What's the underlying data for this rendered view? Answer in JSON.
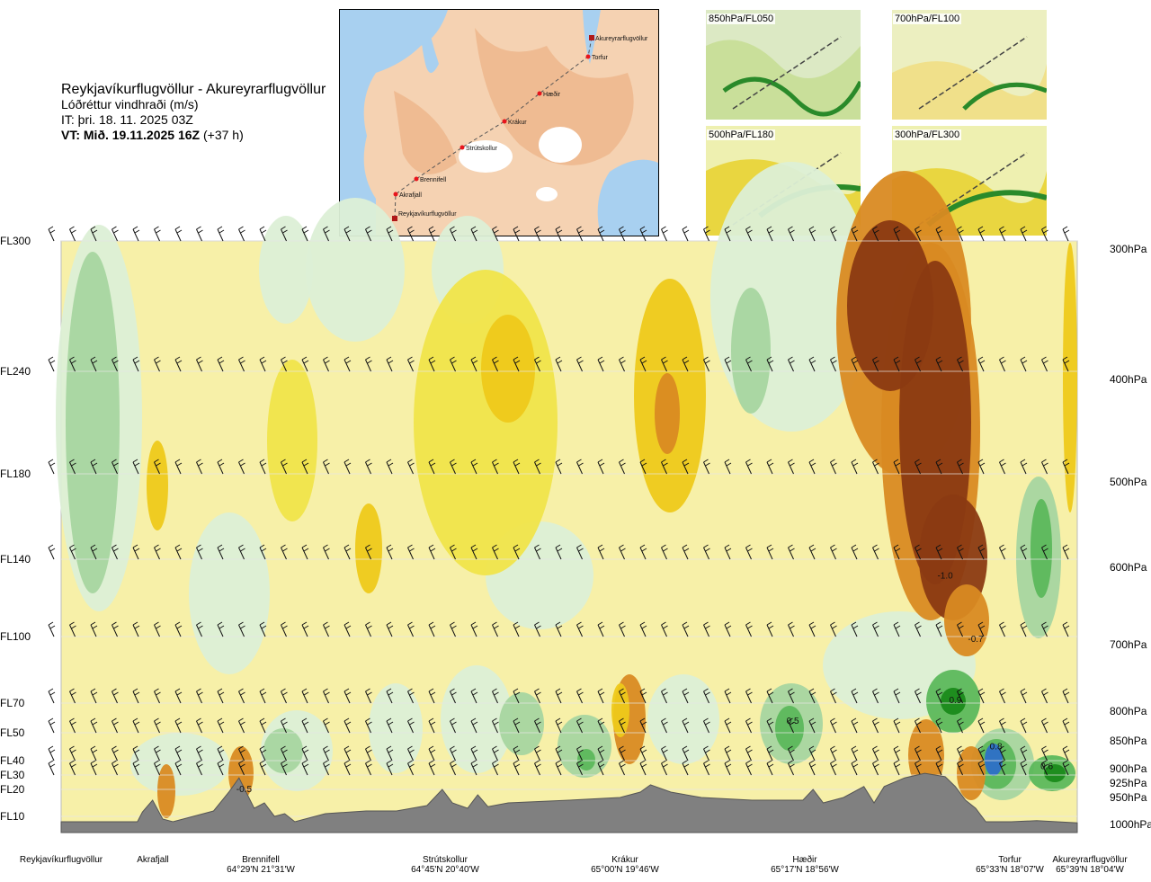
{
  "header": {
    "route": "Reykjavíkurflugvöllur - Akureyrarflugvöllur",
    "variable": "Lóðréttur vindhraði (m/s)",
    "issue_time": "IT: þri. 18. 11. 2025 03Z",
    "valid_prefix": "VT: Mið. 19.11.2025 16Z",
    "valid_suffix": " (+37 h)"
  },
  "map": {
    "points": [
      {
        "name": "Akureyrarflugvöllur"
      },
      {
        "name": "Torfur"
      },
      {
        "name": "Hæðir"
      },
      {
        "name": "Krákur"
      },
      {
        "name": "Strútskollur"
      },
      {
        "name": "Brennifell"
      },
      {
        "name": "Akrafjall"
      },
      {
        "name": "Reykjavíkurflugvöllur"
      }
    ],
    "colors": {
      "land": "#f3c9a4",
      "sea": "#9ec9ec",
      "ice": "#ffffff",
      "route": "#555555",
      "point": "#e8141c"
    }
  },
  "thumbnails": [
    {
      "label": "850hPa/FL050"
    },
    {
      "label": "700hPa/FL100"
    },
    {
      "label": "500hPa/FL180"
    },
    {
      "label": "300hPa/FL300"
    }
  ],
  "chart_data": {
    "type": "heatmap",
    "title": "Lóðréttur vindhraði (m/s)",
    "y_left_flight_levels": [
      "FL300",
      "FL240",
      "FL180",
      "FL140",
      "FL100",
      "FL70",
      "FL50",
      "FL40",
      "FL30",
      "FL20",
      "FL10"
    ],
    "y_right_pressure": [
      "300hPa",
      "400hPa",
      "500hPa",
      "600hPa",
      "700hPa",
      "800hPa",
      "850hPa",
      "900hPa",
      "925hPa",
      "950hPa",
      "1000hPa"
    ],
    "pressure_levels": [
      300,
      400,
      500,
      600,
      700,
      800,
      850,
      900,
      925,
      950,
      1000
    ],
    "x_locations": [
      {
        "name": "Reykjavíkurflugvöllur",
        "coord": ""
      },
      {
        "name": "Akrafjall",
        "coord": ""
      },
      {
        "name": "Brennifell",
        "coord": "64°29'N 21°31'W"
      },
      {
        "name": "Strútskollur",
        "coord": "64°45'N 20°40'W"
      },
      {
        "name": "Krákur",
        "coord": "65°00'N 19°46'W"
      },
      {
        "name": "Hæðir",
        "coord": "65°17'N 18°56'W"
      },
      {
        "name": "Torfur",
        "coord": "65°33'N 18°07'W"
      },
      {
        "name": "Akureyrarflugvöllur",
        "coord": "65°39'N 18°04'W"
      }
    ],
    "x_positions": [
      0.0,
      0.08,
      0.17,
      0.38,
      0.57,
      0.74,
      0.95,
      1.0
    ],
    "contour_labels": [
      {
        "text": "-1.0",
        "x": 0.87,
        "p": 625
      },
      {
        "text": "-0.7",
        "x": 0.9,
        "p": 708
      },
      {
        "text": "0.9",
        "x": 0.88,
        "p": 800
      },
      {
        "text": "0.5",
        "x": 0.72,
        "p": 835
      },
      {
        "text": "0.8",
        "x": 0.92,
        "p": 880
      },
      {
        "text": "0.6",
        "x": 0.97,
        "p": 915
      },
      {
        "text": "-0.5",
        "x": 0.18,
        "p": 955
      }
    ],
    "colors": {
      "strong_down": "#8b3a12",
      "mod_down": "#d98a22",
      "weak_down": "#eec91a",
      "vweak_down": "#f0e44a",
      "neutral_down": "#f7f0a8",
      "neutral_up": "#dcefd6",
      "weak_up": "#a6d5a0",
      "mod_up": "#5cb85c",
      "strong_up": "#1a8a1a",
      "vstrong_up": "#2d6fc7",
      "terrain": "#808080"
    }
  }
}
